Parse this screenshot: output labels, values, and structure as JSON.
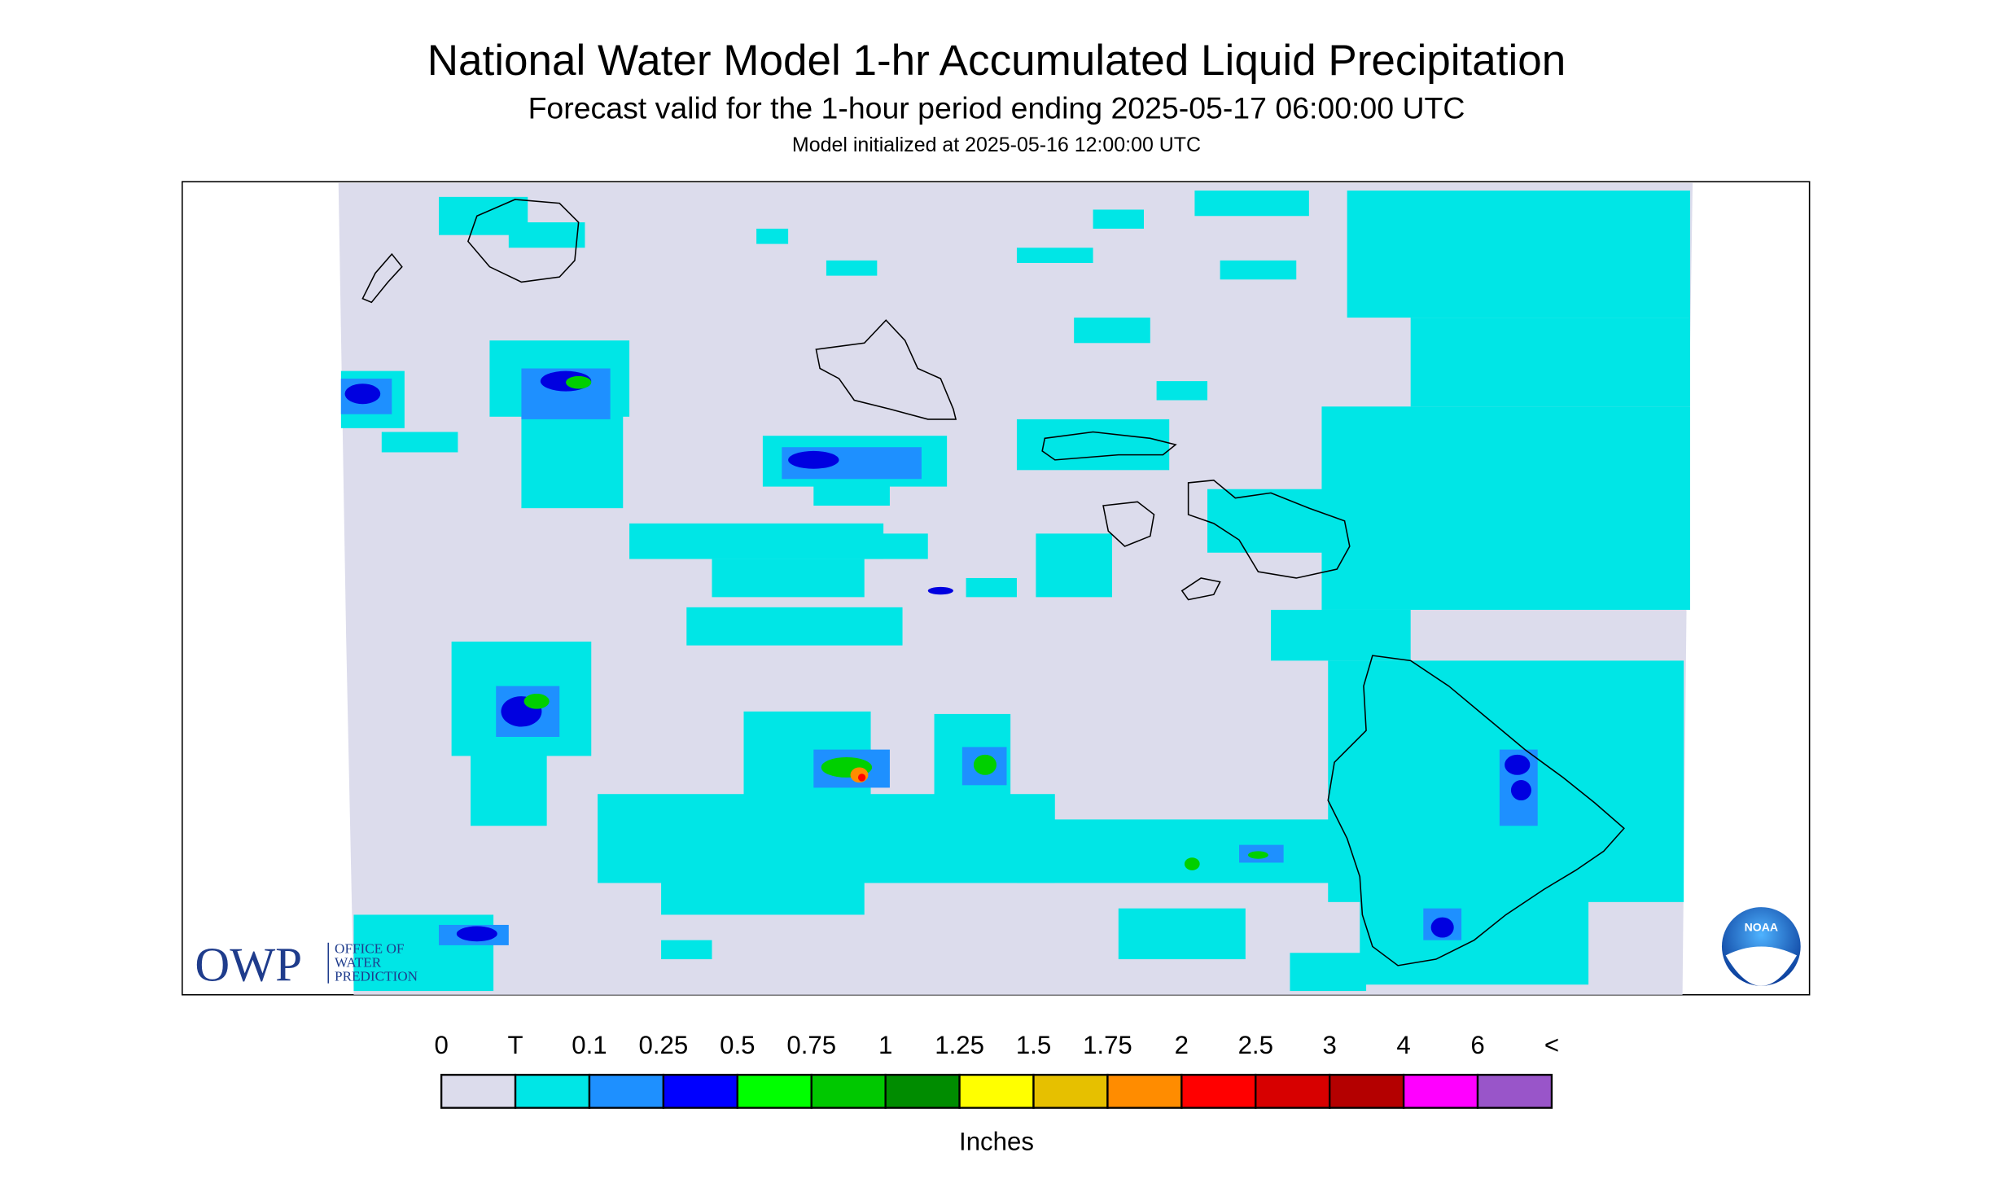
{
  "header": {
    "title": "National Water Model 1-hr Accumulated Liquid Precipitation",
    "subtitle": "Forecast valid for the 1-hour period ending 2025-05-17 06:00:00 UTC",
    "init": "Model initialized at 2025-05-16 12:00:00 UTC"
  },
  "legend": {
    "labels": [
      "0",
      "T",
      "0.1",
      "0.25",
      "0.5",
      "0.75",
      "1",
      "1.25",
      "1.5",
      "1.75",
      "2",
      "2.5",
      "3",
      "4",
      "6",
      "<"
    ],
    "colors": [
      "#dcdcec",
      "#00e6e6",
      "#1e90ff",
      "#0000ff",
      "#00ff00",
      "#00c800",
      "#008c00",
      "#ffff00",
      "#e6c000",
      "#ff8c00",
      "#ff0000",
      "#d70000",
      "#b40000",
      "#ff00ff",
      "#9955c9"
    ],
    "unit": "Inches"
  },
  "logo": {
    "abbr": "OWP",
    "lines": [
      "OFFICE OF",
      "WATER",
      "PREDICTION"
    ]
  },
  "noaa": "NOAA"
}
